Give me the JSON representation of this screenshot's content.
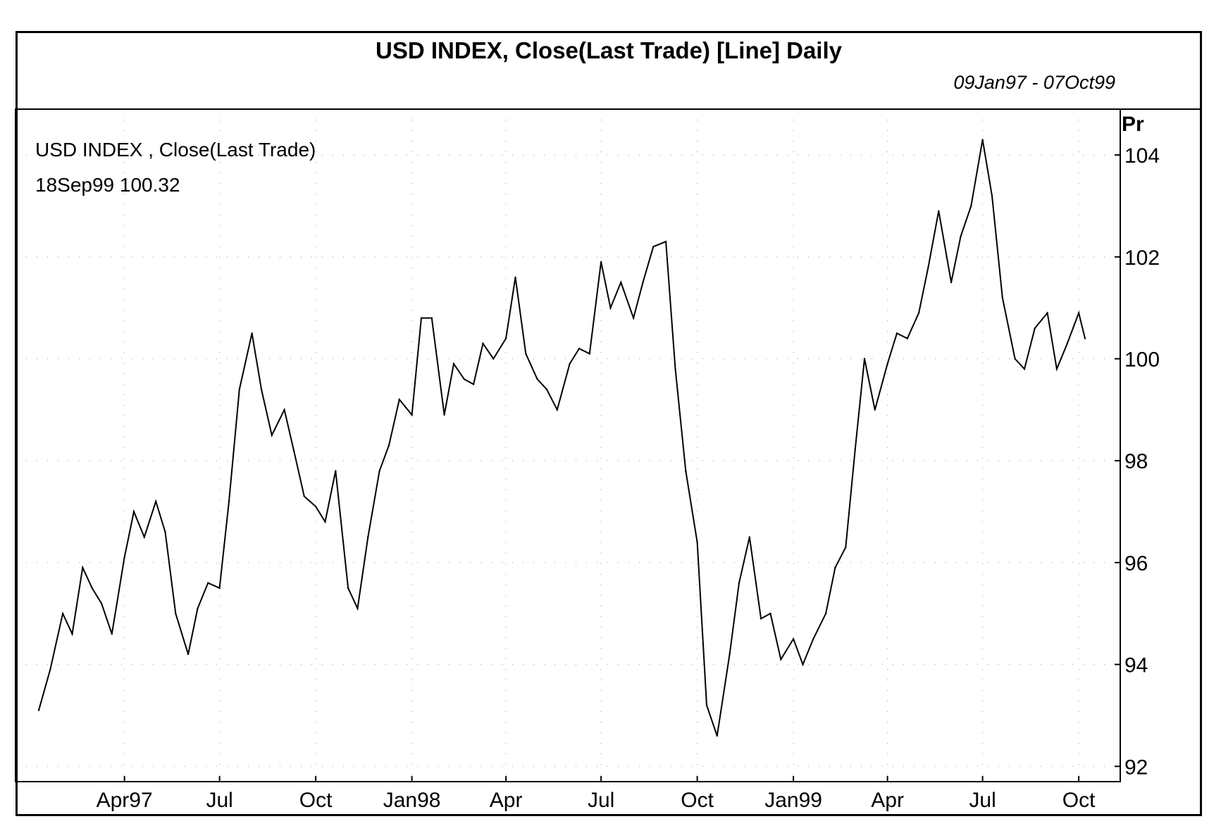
{
  "header": {
    "title": "USD INDEX, Close(Last Trade) [Line] Daily",
    "date_range": "09Jan97 - 07Oct99"
  },
  "chart_data": {
    "type": "line",
    "title": "USD INDEX, Close(Last Trade) [Line] Daily",
    "subtitle": "09Jan97 - 07Oct99",
    "series_label": "USD INDEX , Close(Last Trade)",
    "readout": "18Sep99 100.32",
    "ylabel": "Pr",
    "ylim": [
      91.7,
      104.9
    ],
    "y_ticks": [
      92,
      94,
      96,
      98,
      100,
      102,
      104
    ],
    "y_tick_labels": [
      "92",
      "94",
      "96",
      "98",
      "100",
      "102",
      "104"
    ],
    "xlim": [
      "1997-01-09",
      "1999-10-07"
    ],
    "x_ticks": [
      "1997-04-01",
      "1997-07-01",
      "1997-10-01",
      "1998-01-01",
      "1998-04-01",
      "1998-07-01",
      "1998-10-01",
      "1999-01-01",
      "1999-04-01",
      "1999-07-01",
      "1999-10-01"
    ],
    "x_tick_labels": [
      "Apr97",
      "Jul",
      "Oct",
      "Jan98",
      "Apr",
      "Jul",
      "Oct",
      "Jan99",
      "Apr",
      "Jul",
      "Oct"
    ],
    "grid": true,
    "line_color": "#000000",
    "x": [
      "1997-01-09",
      "1997-01-20",
      "1997-02-01",
      "1997-02-10",
      "1997-02-20",
      "1997-03-01",
      "1997-03-10",
      "1997-03-20",
      "1997-04-01",
      "1997-04-10",
      "1997-04-20",
      "1997-05-01",
      "1997-05-10",
      "1997-05-20",
      "1997-06-01",
      "1997-06-10",
      "1997-06-20",
      "1997-07-01",
      "1997-07-10",
      "1997-07-20",
      "1997-08-01",
      "1997-08-10",
      "1997-08-20",
      "1997-09-01",
      "1997-09-10",
      "1997-09-20",
      "1997-10-01",
      "1997-10-10",
      "1997-10-20",
      "1997-11-01",
      "1997-11-10",
      "1997-11-20",
      "1997-12-01",
      "1997-12-10",
      "1997-12-20",
      "1998-01-01",
      "1998-01-10",
      "1998-01-20",
      "1998-02-01",
      "1998-02-10",
      "1998-02-20",
      "1998-03-01",
      "1998-03-10",
      "1998-03-20",
      "1998-04-01",
      "1998-04-10",
      "1998-04-20",
      "1998-05-01",
      "1998-05-10",
      "1998-05-20",
      "1998-06-01",
      "1998-06-10",
      "1998-06-20",
      "1998-07-01",
      "1998-07-10",
      "1998-07-20",
      "1998-08-01",
      "1998-08-10",
      "1998-08-20",
      "1998-09-01",
      "1998-09-10",
      "1998-09-20",
      "1998-10-01",
      "1998-10-10",
      "1998-10-20",
      "1998-11-01",
      "1998-11-10",
      "1998-11-20",
      "1998-12-01",
      "1998-12-10",
      "1998-12-20",
      "1999-01-01",
      "1999-01-10",
      "1999-01-20",
      "1999-02-01",
      "1999-02-10",
      "1999-02-20",
      "1999-03-01",
      "1999-03-10",
      "1999-03-20",
      "1999-04-01",
      "1999-04-10",
      "1999-04-20",
      "1999-05-01",
      "1999-05-10",
      "1999-05-20",
      "1999-06-01",
      "1999-06-10",
      "1999-06-20",
      "1999-07-01",
      "1999-07-10",
      "1999-07-20",
      "1999-08-01",
      "1999-08-10",
      "1999-08-20",
      "1999-09-01",
      "1999-09-10",
      "1999-09-20",
      "1999-10-01",
      "1999-10-07"
    ],
    "y": [
      93.1,
      93.9,
      95.0,
      94.6,
      95.9,
      95.5,
      95.2,
      94.6,
      96.1,
      97.0,
      96.5,
      97.2,
      96.6,
      95.0,
      94.2,
      95.1,
      95.6,
      95.5,
      97.2,
      99.4,
      100.5,
      99.4,
      98.5,
      99.0,
      98.2,
      97.3,
      97.1,
      96.8,
      97.8,
      95.5,
      95.1,
      96.5,
      97.8,
      98.3,
      99.2,
      98.9,
      100.8,
      100.8,
      98.9,
      99.9,
      99.6,
      99.5,
      100.3,
      100.0,
      100.4,
      101.6,
      100.1,
      99.6,
      99.4,
      99.0,
      99.9,
      100.2,
      100.1,
      101.9,
      101.0,
      101.5,
      100.8,
      101.5,
      102.2,
      102.3,
      99.8,
      97.8,
      96.4,
      93.2,
      92.6,
      94.2,
      95.6,
      96.5,
      94.9,
      95.0,
      94.1,
      94.5,
      94.0,
      94.5,
      95.0,
      95.9,
      96.3,
      98.2,
      100.0,
      99.0,
      99.9,
      100.5,
      100.4,
      100.9,
      101.8,
      102.9,
      101.5,
      102.4,
      103.0,
      104.3,
      103.2,
      101.2,
      100.0,
      99.8,
      100.6,
      100.9,
      99.8,
      100.3,
      100.9,
      100.4
    ]
  }
}
